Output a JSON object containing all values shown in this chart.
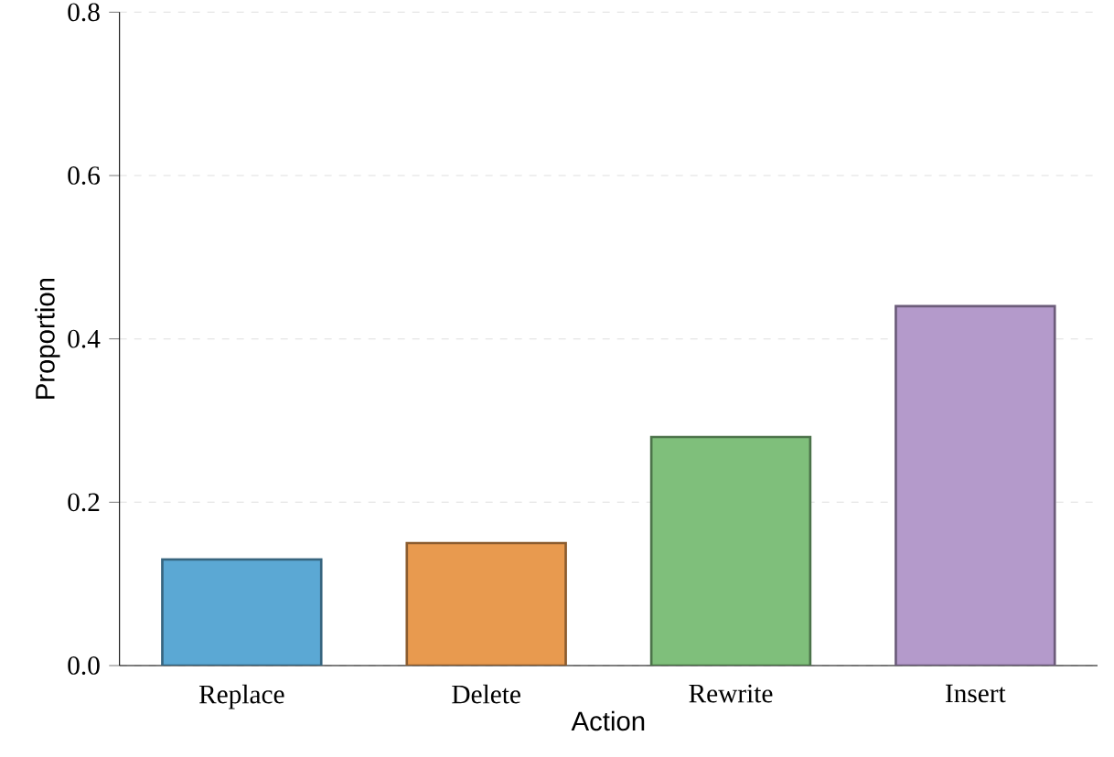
{
  "chart_data": {
    "type": "bar",
    "xlabel": "Action",
    "ylabel": "Proportion",
    "categories": [
      "Replace",
      "Delete",
      "Rewrite",
      "Insert"
    ],
    "values": [
      0.13,
      0.15,
      0.28,
      0.44
    ],
    "colors": [
      "#5ba8d4",
      "#e89a4f",
      "#7fbf7b",
      "#b49acb"
    ],
    "ylim": [
      0,
      0.8
    ],
    "yticks": [
      {
        "value": 0,
        "label": "0.0"
      },
      0.2,
      0.4,
      0.6,
      0.8
    ],
    "grid": "y"
  }
}
